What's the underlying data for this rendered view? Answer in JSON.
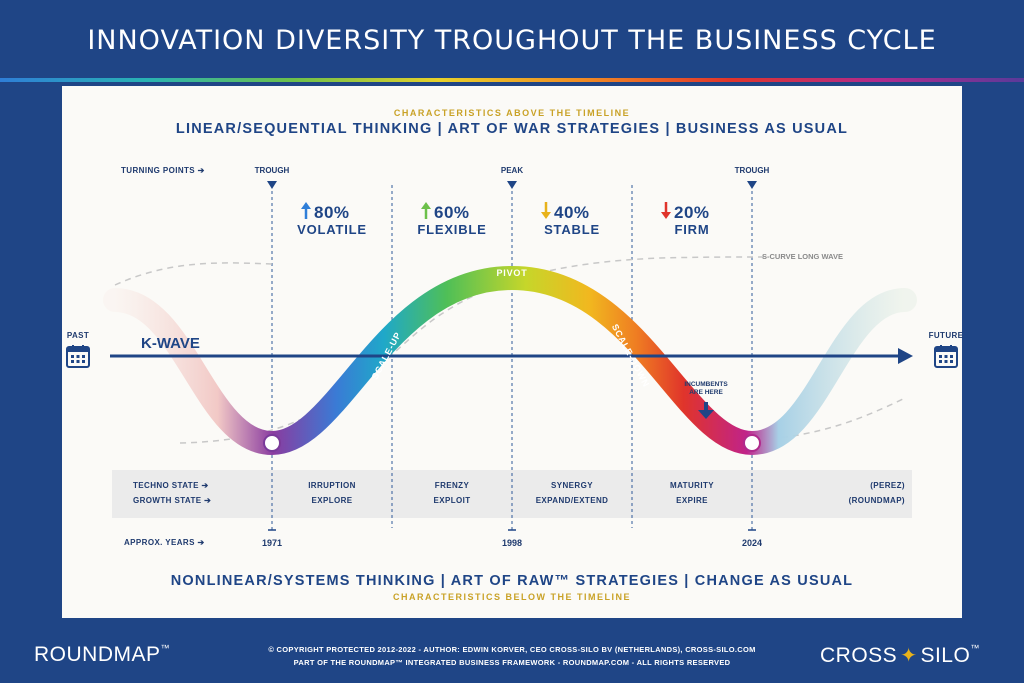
{
  "title": "INNOVATION DIVERSITY TROUGHOUT THE BUSINESS CYCLE",
  "top": {
    "caption": "CHARACTERISTICS ABOVE THE TIMELINE",
    "heading": "LINEAR/SEQUENTIAL THINKING | ART OF WAR STRATEGIES | BUSINESS AS USUAL"
  },
  "bottom": {
    "heading": "NONLINEAR/SYSTEMS THINKING | ART OF RAW™ STRATEGIES | CHANGE AS USUAL",
    "caption": "CHARACTERISTICS BELOW THE TIMELINE"
  },
  "turning_points_label": "TURNING POINTS",
  "turning_points": [
    "TROUGH",
    "PEAK",
    "TROUGH"
  ],
  "phases": [
    {
      "pct": "80%",
      "direction": "up",
      "name": "VOLATILE",
      "color": "#2f7ed8",
      "techno": "IRRUPTION",
      "growth": "EXPLORE"
    },
    {
      "pct": "60%",
      "direction": "up",
      "name": "FLEXIBLE",
      "color": "#6cc04a",
      "techno": "FRENZY",
      "growth": "EXPLOIT"
    },
    {
      "pct": "40%",
      "direction": "down",
      "name": "STABLE",
      "color": "#e8b21a",
      "techno": "SYNERGY",
      "growth": "EXPAND/EXTEND"
    },
    {
      "pct": "20%",
      "direction": "down",
      "name": "FIRM",
      "color": "#e0342b",
      "techno": "MATURITY",
      "growth": "EXPIRE"
    }
  ],
  "curve_labels": {
    "scale_up": "SCALE-UP",
    "pivot": "PIVOT",
    "scale_down": "SCALE-DOWN",
    "s_curve": "S-CURVE LONG WAVE"
  },
  "timeline": {
    "label": "K-WAVE",
    "past": "PAST",
    "future": "FUTURE"
  },
  "incumbents": {
    "line1": "INCUMBENTS",
    "line2": "ARE HERE"
  },
  "states": {
    "techno_label": "TECHNO STATE",
    "growth_label": "GROWTH STATE",
    "techno_source": "(PEREZ)",
    "growth_source": "(ROUNDMAP)"
  },
  "years": {
    "label": "APPROX. YEARS",
    "values": [
      "1971",
      "1998",
      "2024"
    ]
  },
  "footer": {
    "left_logo": "ROUNDMAP",
    "left_logo_tm": "™",
    "line1": "© COPYRIGHT PROTECTED 2012-2022 - AUTHOR: EDWIN KORVER, CEO CROSS-SILO BV (NETHERLANDS), CROSS-SILO.COM",
    "line2": "PART OF THE ROUNDMAP™ INTEGRATED BUSINESS FRAMEWORK - ROUNDMAP.COM - ALL RIGHTS RESERVED",
    "right_logo_a": "CROSS",
    "right_logo_b": "SILO",
    "right_logo_tm": "™"
  },
  "colors": {
    "navy": "#1f4586",
    "gold": "#c9a227",
    "background": "#fbfaf7",
    "band": "#ebebeb"
  }
}
